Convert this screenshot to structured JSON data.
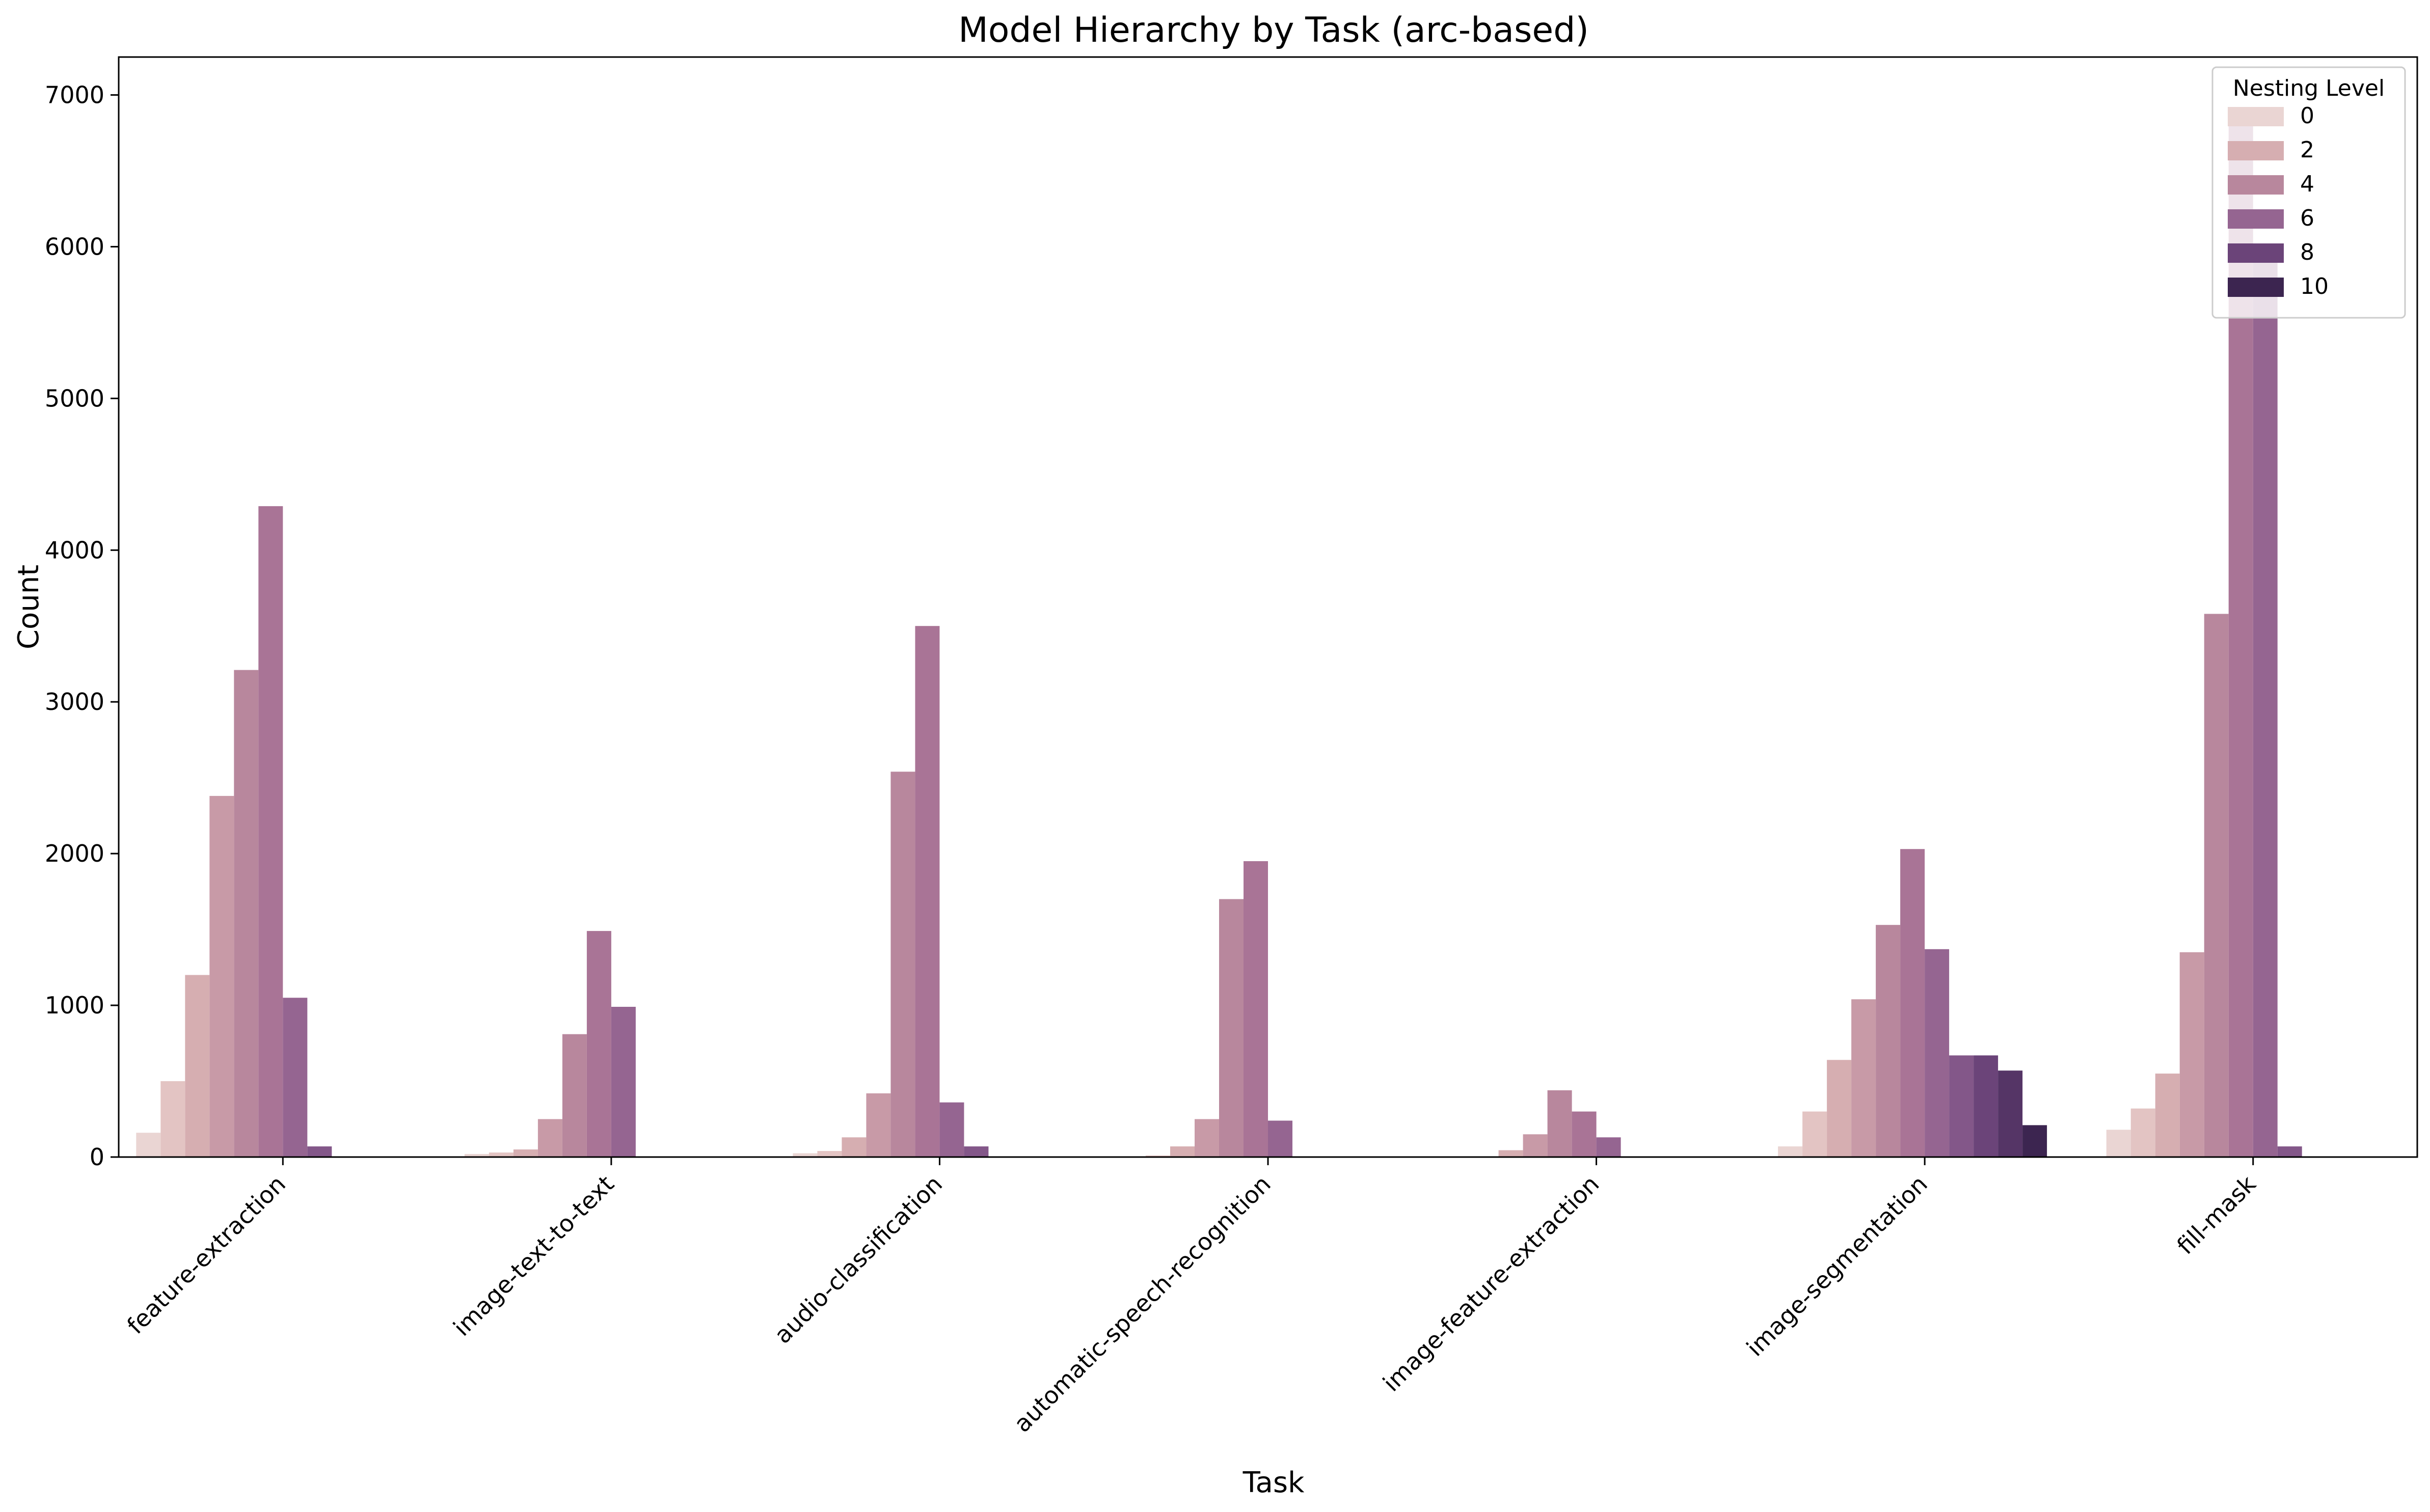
{
  "chart_data": {
    "type": "bar",
    "title": "Model Hierarchy by Task (arc-based)",
    "xlabel": "Task",
    "ylabel": "Count",
    "ylim": [
      0,
      7250
    ],
    "yticks": [
      0,
      1000,
      2000,
      3000,
      4000,
      5000,
      6000,
      7000
    ],
    "grid": false,
    "legend": {
      "title": "Nesting Level",
      "placement": "top-right",
      "entries": [
        "0",
        "2",
        "4",
        "6",
        "8",
        "10"
      ],
      "entry_levels": [
        0,
        2,
        4,
        6,
        8,
        10
      ]
    },
    "categories": [
      "feature-extraction",
      "image-text-to-text",
      "audio-classification",
      "automatic-speech-recognition",
      "image-feature-extraction",
      "image-segmentation",
      "fill-mask"
    ],
    "level_colors": [
      "#ead5d3",
      "#e3c4c3",
      "#d6aeb1",
      "#c89aa7",
      "#b8879d",
      "#a97496",
      "#956591",
      "#835789",
      "#6b4479",
      "#553566",
      "#3c2550",
      "#281b39"
    ],
    "series": [
      {
        "level": 0,
        "values": [
          160,
          20,
          25,
          5,
          0,
          70,
          180
        ]
      },
      {
        "level": 1,
        "values": [
          500,
          30,
          40,
          10,
          5,
          300,
          320
        ]
      },
      {
        "level": 2,
        "values": [
          1200,
          50,
          130,
          70,
          45,
          640,
          550
        ]
      },
      {
        "level": 3,
        "values": [
          2380,
          250,
          420,
          250,
          150,
          1040,
          1350
        ]
      },
      {
        "level": 4,
        "values": [
          3210,
          810,
          2540,
          1700,
          440,
          1530,
          3580
        ]
      },
      {
        "level": 5,
        "values": [
          4290,
          1490,
          3500,
          1950,
          300,
          2030,
          6920
        ]
      },
      {
        "level": 6,
        "values": [
          1050,
          990,
          360,
          240,
          130,
          1370,
          5950
        ]
      },
      {
        "level": 7,
        "values": [
          70,
          0,
          70,
          0,
          0,
          670,
          70
        ]
      },
      {
        "level": 8,
        "values": [
          0,
          0,
          0,
          0,
          0,
          670,
          0
        ]
      },
      {
        "level": 9,
        "values": [
          0,
          0,
          0,
          0,
          0,
          570,
          0
        ]
      },
      {
        "level": 10,
        "values": [
          0,
          0,
          0,
          0,
          0,
          210,
          0
        ]
      },
      {
        "level": 11,
        "values": [
          0,
          0,
          0,
          0,
          0,
          0,
          0
        ]
      }
    ]
  }
}
